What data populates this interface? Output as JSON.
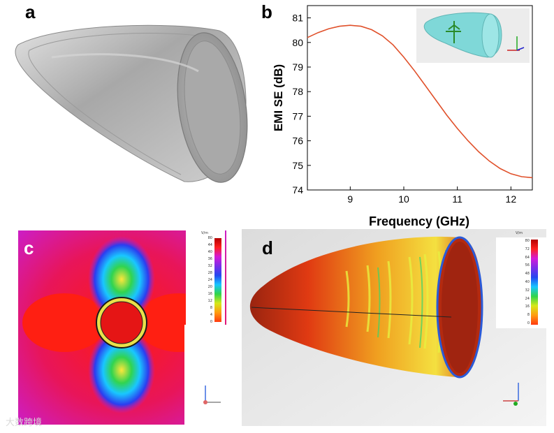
{
  "figure": {
    "panel_a_label": "a",
    "panel_b_label": "b",
    "panel_c_label": "c",
    "panel_d_label": "d",
    "watermark": "大数跨境"
  },
  "colorbar": {
    "unit": "V/m",
    "ticks": [
      "80",
      "72",
      "64",
      "56",
      "48",
      "40",
      "32",
      "24",
      "16",
      "8",
      "0"
    ],
    "ticks_c": [
      "80",
      "44",
      "40",
      "36",
      "32",
      "28",
      "24",
      "20",
      "16",
      "12",
      "8",
      "4",
      "0"
    ]
  },
  "colors": {
    "curve": "#e0502a",
    "field_red": "#e51515",
    "field_magenta": "#d41ad8"
  },
  "chart_data": {
    "type": "line",
    "title": "",
    "xlabel": "Frequency (GHz)",
    "ylabel": "EMI SE (dB)",
    "xlim": [
      8.2,
      12.4
    ],
    "ylim": [
      74,
      81.5
    ],
    "xticks": [
      "9",
      "10",
      "11",
      "12"
    ],
    "yticks": [
      "74",
      "75",
      "76",
      "77",
      "78",
      "79",
      "80",
      "81"
    ],
    "series": [
      {
        "name": "EMI SE",
        "x": [
          8.2,
          8.4,
          8.6,
          8.8,
          9.0,
          9.2,
          9.4,
          9.6,
          9.8,
          10.0,
          10.2,
          10.4,
          10.6,
          10.8,
          11.0,
          11.2,
          11.4,
          11.6,
          11.8,
          12.0,
          12.2,
          12.4
        ],
        "y": [
          80.2,
          80.4,
          80.56,
          80.66,
          80.7,
          80.66,
          80.52,
          80.27,
          79.9,
          79.4,
          78.85,
          78.25,
          77.65,
          77.05,
          76.5,
          76.0,
          75.55,
          75.17,
          74.87,
          74.66,
          74.54,
          74.5
        ]
      }
    ]
  }
}
